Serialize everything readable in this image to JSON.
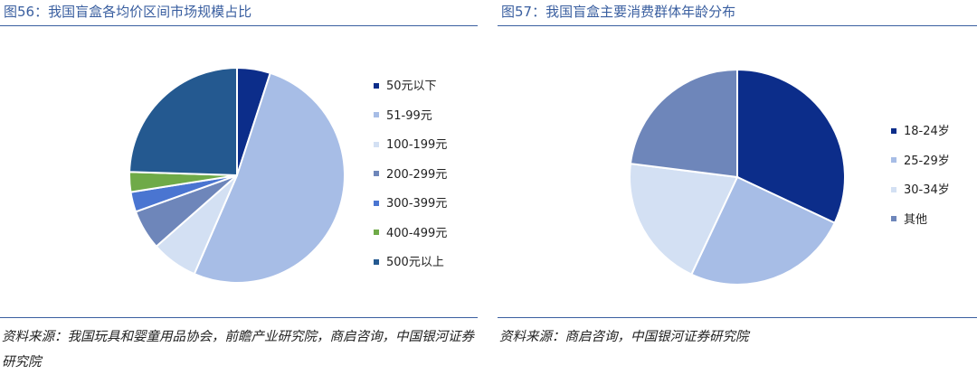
{
  "figures": [
    {
      "title": "图56：我国盲盒各均价区间市场规模占比",
      "source": "资料来源：我国玩具和婴童用品协会，前瞻产业研究院，商启咨询，中国银河证券研究院",
      "chart_data": {
        "type": "pie",
        "title": "图56：我国盲盒各均价区间市场规模占比",
        "categories": [
          "50元以下",
          "51-99元",
          "100-199元",
          "200-299元",
          "300-399元",
          "400-499元",
          "500元以上"
        ],
        "values": [
          5.0,
          51.5,
          7.0,
          6.0,
          3.0,
          3.0,
          24.5
        ],
        "colors": [
          "#0c2d8a",
          "#a7bde6",
          "#d3e0f3",
          "#6e86ba",
          "#4a75d1",
          "#6faa48",
          "#245990"
        ],
        "legend_position": "right"
      }
    },
    {
      "title": "图57：我国盲盒主要消费群体年龄分布",
      "source": "资料来源：商启咨询，中国银河证券研究院",
      "chart_data": {
        "type": "pie",
        "title": "图57：我国盲盒主要消费群体年龄分布",
        "categories": [
          "18-24岁",
          "25-29岁",
          "30-34岁",
          "其他"
        ],
        "values": [
          32,
          25,
          20,
          23
        ],
        "colors": [
          "#0c2d8a",
          "#a7bde6",
          "#d3e0f3",
          "#6e86ba"
        ],
        "legend_position": "right"
      }
    }
  ]
}
